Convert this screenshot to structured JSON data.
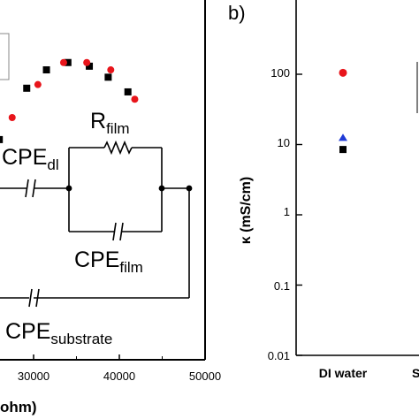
{
  "chart_data": [
    {
      "type": "scatter",
      "panel_label": "",
      "xlabel": "ohm)",
      "xlim": [
        20000,
        50000
      ],
      "x_ticks": [
        "30000",
        "40000",
        "50000"
      ],
      "x_tick_values": [
        30000,
        40000,
        50000
      ],
      "series": [
        {
          "color": "#000000",
          "marker": "square",
          "x": [
            26000,
            29200,
            31500,
            34000,
            36500,
            38700,
            41000
          ],
          "y": [
            0.6,
            0.74,
            0.79,
            0.81,
            0.8,
            0.77,
            0.73
          ]
        },
        {
          "color": "#e8151b",
          "marker": "circle",
          "x": [
            24500,
            27500,
            30500,
            33500,
            36200,
            39000,
            41800
          ],
          "y": [
            0.55,
            0.66,
            0.75,
            0.81,
            0.81,
            0.79,
            0.71
          ]
        }
      ],
      "circuit": {
        "cpe_dl": {
          "main": "CPE",
          "sub": "dl"
        },
        "r_film": {
          "main": "R",
          "sub": "film"
        },
        "cpe_film": {
          "main": "CPE",
          "sub": "film"
        },
        "cpe_substrate": {
          "main": "CPE",
          "sub": "substrate"
        }
      }
    },
    {
      "type": "scatter",
      "panel_label": "b)",
      "ylabel": "κ (mS/cm)",
      "yscale": "log",
      "ylim": [
        0.01,
        400
      ],
      "y_ticks": [
        "0.01",
        "0.1",
        "1",
        "10",
        "100"
      ],
      "y_tick_values": [
        0.01,
        0.1,
        1,
        10,
        100
      ],
      "categories": [
        "DI water"
      ],
      "category_right_clipped": "S",
      "series": [
        {
          "color": "#e8151b",
          "marker": "circle",
          "values": [
            105
          ]
        },
        {
          "color": "#1f3ad6",
          "marker": "triangle",
          "values": [
            12.5
          ]
        },
        {
          "color": "#000000",
          "marker": "square",
          "values": [
            8.5
          ]
        }
      ]
    }
  ]
}
